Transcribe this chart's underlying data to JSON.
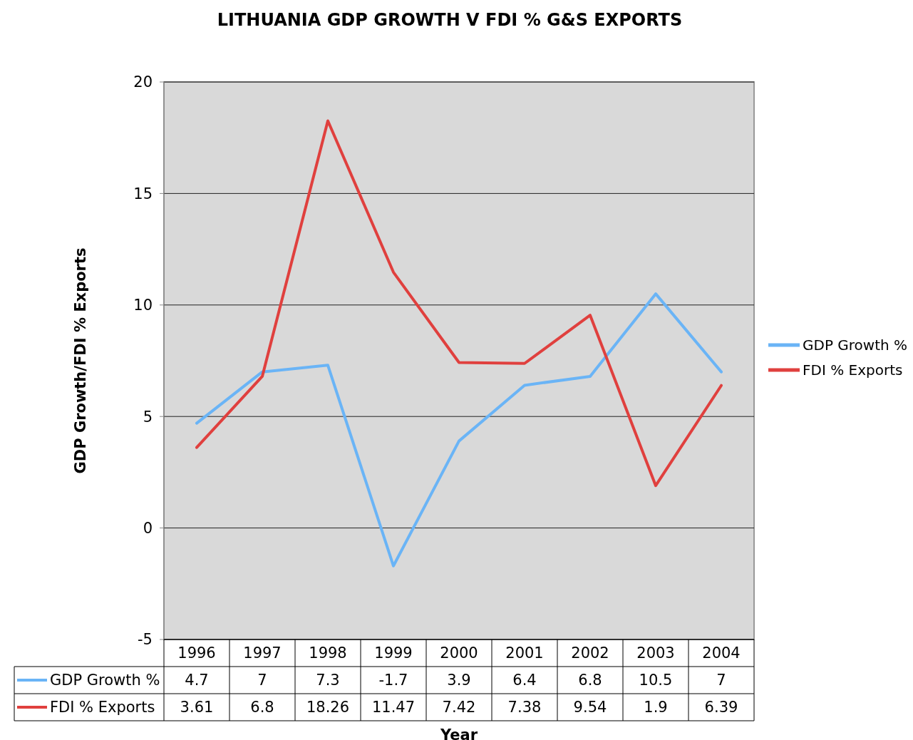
{
  "chart_data": {
    "type": "line",
    "title": "LITHUANIA GDP GROWTH V FDI % G&S EXPORTS",
    "xlabel": "Year",
    "ylabel": "GDP Growth/FDI % Exports",
    "categories": [
      "1996",
      "1997",
      "1998",
      "1999",
      "2000",
      "2001",
      "2002",
      "2003",
      "2004"
    ],
    "series": [
      {
        "name": "GDP Growth %",
        "color": "#6ab4f6",
        "values": [
          4.7,
          7,
          7.3,
          -1.7,
          3.9,
          6.4,
          6.8,
          10.5,
          7
        ]
      },
      {
        "name": "FDI % Exports",
        "color": "#e0403e",
        "values": [
          3.61,
          6.8,
          18.26,
          11.47,
          7.42,
          7.38,
          9.54,
          1.9,
          6.39
        ]
      }
    ],
    "ylim": [
      -5,
      20
    ],
    "yticks": [
      -5,
      0,
      5,
      10,
      15,
      20
    ],
    "grid": "y",
    "legend": "right",
    "data_labels": true,
    "marker": "none",
    "line_style": "solid"
  }
}
